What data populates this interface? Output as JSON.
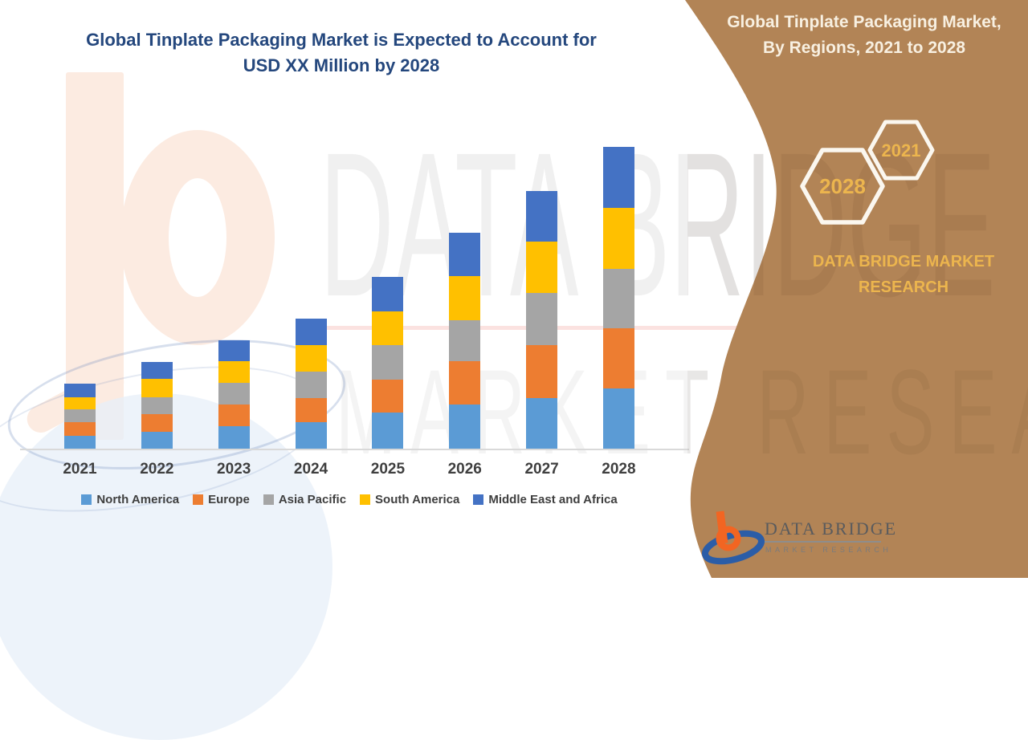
{
  "header": {
    "title_line1": "Global Tinplate Packaging Market is Expected to Account for",
    "title_line2": "USD XX Million by 2028"
  },
  "sidebar": {
    "title_line1": "Global Tinplate Packaging Market,",
    "title_line2": "By Regions, 2021 to 2028",
    "hexagon_labels": [
      "2028",
      "2021"
    ],
    "brand_text": "DATA BRIDGE MARKET RESEARCH",
    "logo": {
      "name": "DATA BRIDGE",
      "tagline": "MARKET RESEARCH"
    },
    "panel_color": "#b28456",
    "accent_gold": "#ecb54e"
  },
  "watermark": {
    "line1": "DATA BRIDGE",
    "line2": "MARKET RESEARCH"
  },
  "chart_data": {
    "type": "bar",
    "stacked": true,
    "title": "Global Tinplate Packaging Market is Expected to Account for USD XX Million by 2028",
    "subtitle": "Global Tinplate Packaging Market, By Regions, 2021 to 2028",
    "categories": [
      "2021",
      "2022",
      "2023",
      "2024",
      "2025",
      "2026",
      "2027",
      "2028"
    ],
    "series": [
      {
        "name": "North America",
        "color": "#5b9bd5",
        "values": [
          16,
          21,
          28,
          33,
          45,
          55,
          63,
          75
        ]
      },
      {
        "name": "Europe",
        "color": "#ed7d31",
        "values": [
          17,
          22,
          27,
          30,
          41,
          54,
          66,
          75
        ]
      },
      {
        "name": "Asia Pacific",
        "color": "#a5a5a5",
        "values": [
          16,
          21,
          27,
          33,
          43,
          51,
          65,
          74
        ]
      },
      {
        "name": "South America",
        "color": "#ffc000",
        "values": [
          15,
          23,
          27,
          33,
          42,
          55,
          64,
          76
        ]
      },
      {
        "name": "Middle East and Africa",
        "color": "#4472c4",
        "values": [
          17,
          21,
          26,
          33,
          43,
          54,
          63,
          76
        ]
      }
    ],
    "totals": [
      81,
      108,
      135,
      162,
      214,
      269,
      321,
      376
    ],
    "xlabel": "",
    "ylabel": "",
    "y_axis_visible": false,
    "value_units": "relative index (actual values masked as USD XX Million)",
    "legend_position": "bottom",
    "grid": false
  }
}
